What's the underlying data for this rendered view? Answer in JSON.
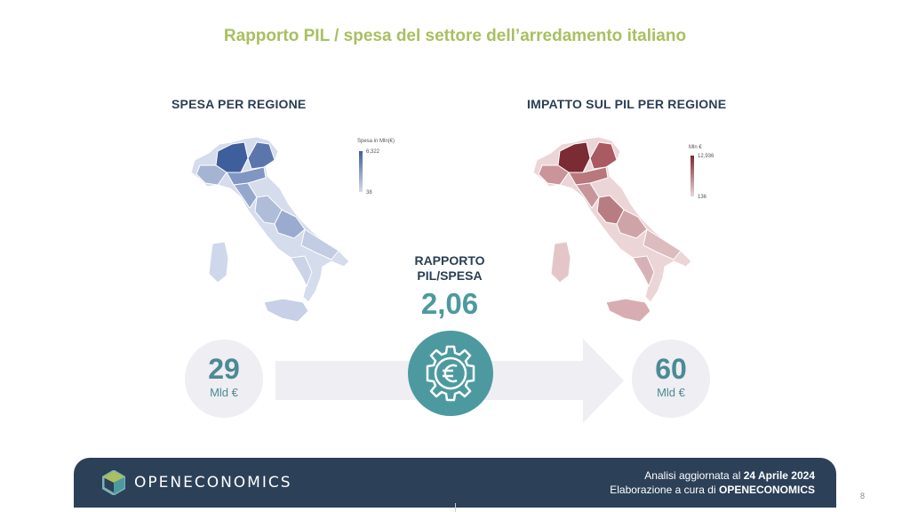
{
  "title": "Rapporto PIL / spesa del settore dell’arredamento italiano",
  "left": {
    "heading": "SPESA PER REGIONE",
    "legend_title": "Spesa in Mln(€)",
    "legend_max": "6,322",
    "legend_min": "38",
    "colors": {
      "dark": "#3f5f9c",
      "light": "#d5dcec"
    },
    "value": "29",
    "unit": "Mld €"
  },
  "right": {
    "heading": "IMPATTO SUL PIL PER REGIONE",
    "legend_title": "Mln €",
    "legend_max": "12,936",
    "legend_min": "136",
    "colors": {
      "dark": "#7a2b33",
      "light": "#ecd5d7"
    },
    "value": "60",
    "unit": "Mld €"
  },
  "ratio": {
    "label_line1": "RAPPORTO",
    "label_line2": "PIL/SPESA",
    "value": "2,06",
    "icon": "euro-gear-icon"
  },
  "footer": {
    "brand": "OPENECONOMICS",
    "line1_prefix": "Analisi aggiornata al",
    "line1_date": "24 Aprile 2024",
    "line2_prefix": "Elaborazione a cura di",
    "line2_brand": "OPENECONOMICS"
  },
  "page_number": "8"
}
